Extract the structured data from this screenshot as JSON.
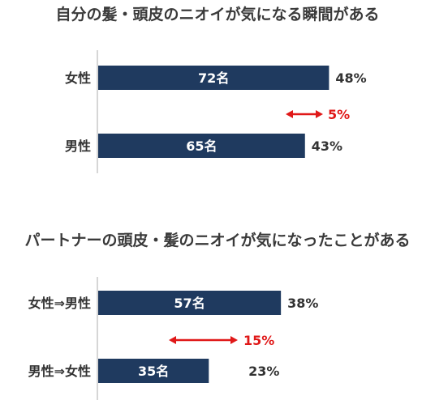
{
  "chart_data": [
    {
      "type": "bar",
      "orientation": "horizontal",
      "title": "自分の髪・頭皮のニオイが気になる瞬間がある",
      "categories": [
        "女性",
        "男性"
      ],
      "values": [
        48,
        43
      ],
      "bar_labels": [
        "72名",
        "65名"
      ],
      "value_labels": [
        "48%",
        "43%"
      ],
      "difference": "5%",
      "xlim": [
        0,
        100
      ],
      "bar_color": "#1f3a5f",
      "difference_color": "#e01818"
    },
    {
      "type": "bar",
      "orientation": "horizontal",
      "title": "パートナーの頭皮・髪のニオイが気になったことがある",
      "categories": [
        "女性⇒男性",
        "男性⇒女性"
      ],
      "values": [
        38,
        23
      ],
      "bar_labels": [
        "57名",
        "35名"
      ],
      "value_labels": [
        "38%",
        "23%"
      ],
      "difference": "15%",
      "xlim": [
        0,
        100
      ],
      "bar_color": "#1f3a5f",
      "difference_color": "#e01818"
    }
  ]
}
